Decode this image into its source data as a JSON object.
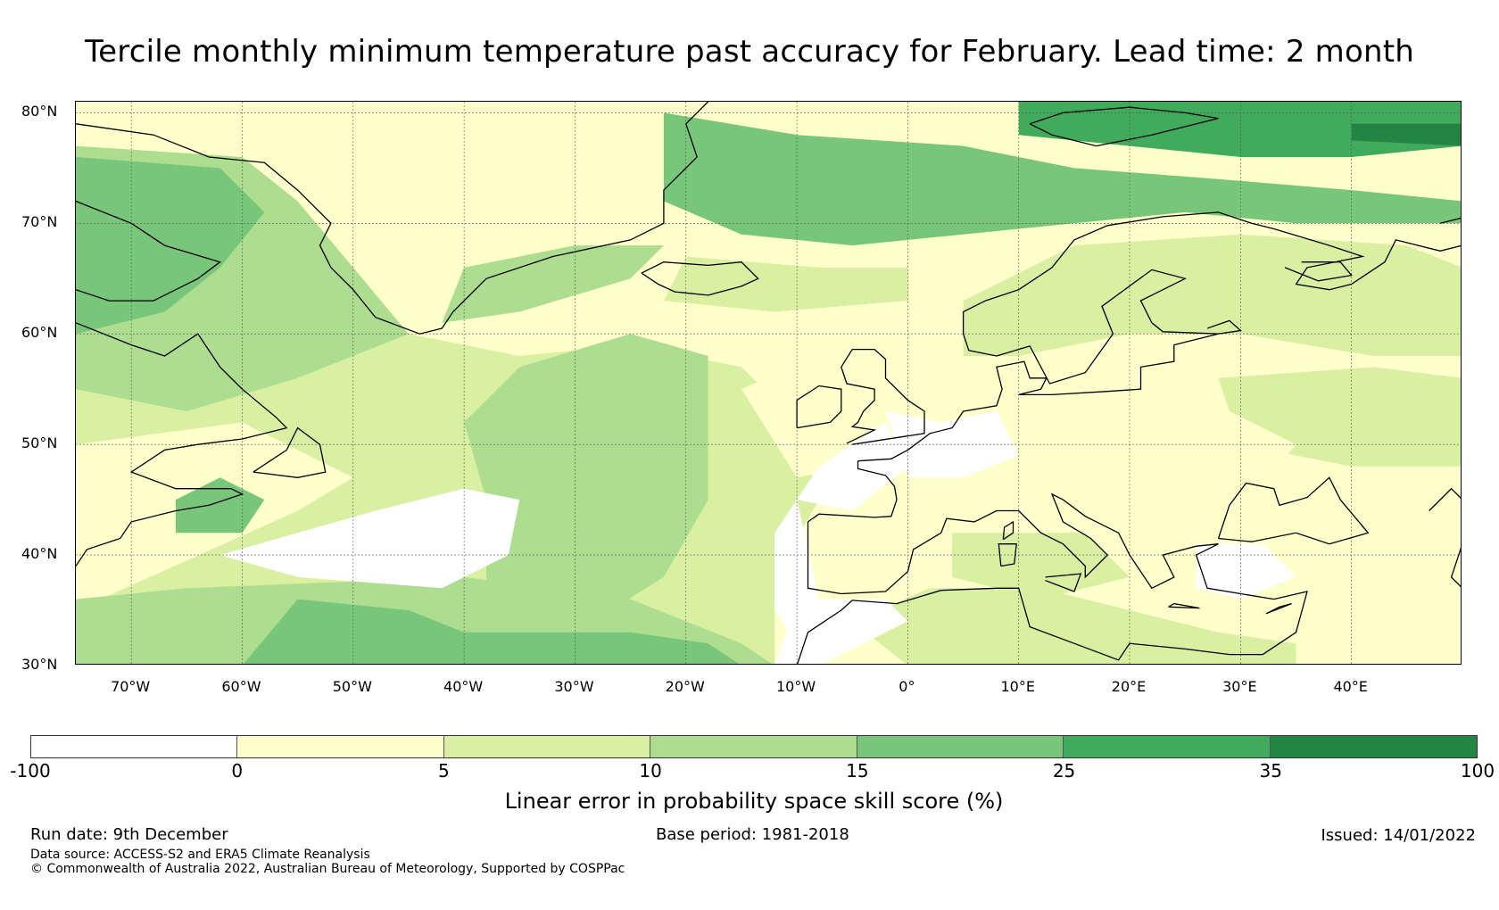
{
  "title": "Tercile monthly minimum temperature past accuracy for February. Lead time: 2 month",
  "map": {
    "lat_range": [
      30,
      81
    ],
    "lon_range": [
      -75,
      50
    ],
    "lat_labels": [
      "30°N",
      "40°N",
      "50°N",
      "60°N",
      "70°N",
      "80°N"
    ],
    "lat_values": [
      30,
      40,
      50,
      60,
      70,
      80
    ],
    "lon_labels": [
      "70°W",
      "60°W",
      "50°W",
      "40°W",
      "30°W",
      "20°W",
      "10°W",
      "0°",
      "10°E",
      "20°E",
      "30°E",
      "40°E"
    ],
    "lon_values": [
      -70,
      -60,
      -50,
      -40,
      -30,
      -20,
      -10,
      0,
      10,
      20,
      30,
      40
    ],
    "coastline_color": "#000000",
    "gridline_color": "#555555"
  },
  "colorbar": {
    "label": "Linear error in probability space skill score (%)",
    "ticks": [
      "-100",
      "0",
      "5",
      "10",
      "15",
      "25",
      "35",
      "100"
    ],
    "bins": [
      {
        "range": "-100 to 0",
        "color": "#ffffff"
      },
      {
        "range": "0 to 5",
        "color": "#ffffcc"
      },
      {
        "range": "5 to 10",
        "color": "#d9f0a3"
      },
      {
        "range": "10 to 15",
        "color": "#addd8e"
      },
      {
        "range": "15 to 25",
        "color": "#78c679"
      },
      {
        "range": "25 to 35",
        "color": "#41ab5d"
      },
      {
        "range": "35 to 100",
        "color": "#238443"
      }
    ]
  },
  "footer": {
    "run_date": "Run date: 9th December",
    "base_period": "Base period: 1981-2018",
    "issued": "Issued: 14/01/2022",
    "data_source": "Data source: ACCESS-S2 and ERA5 Climate Reanalysis",
    "copyright": "© Commonwealth of Australia 2022, Australian Bureau of Meteorology, Supported by COSPPac"
  }
}
